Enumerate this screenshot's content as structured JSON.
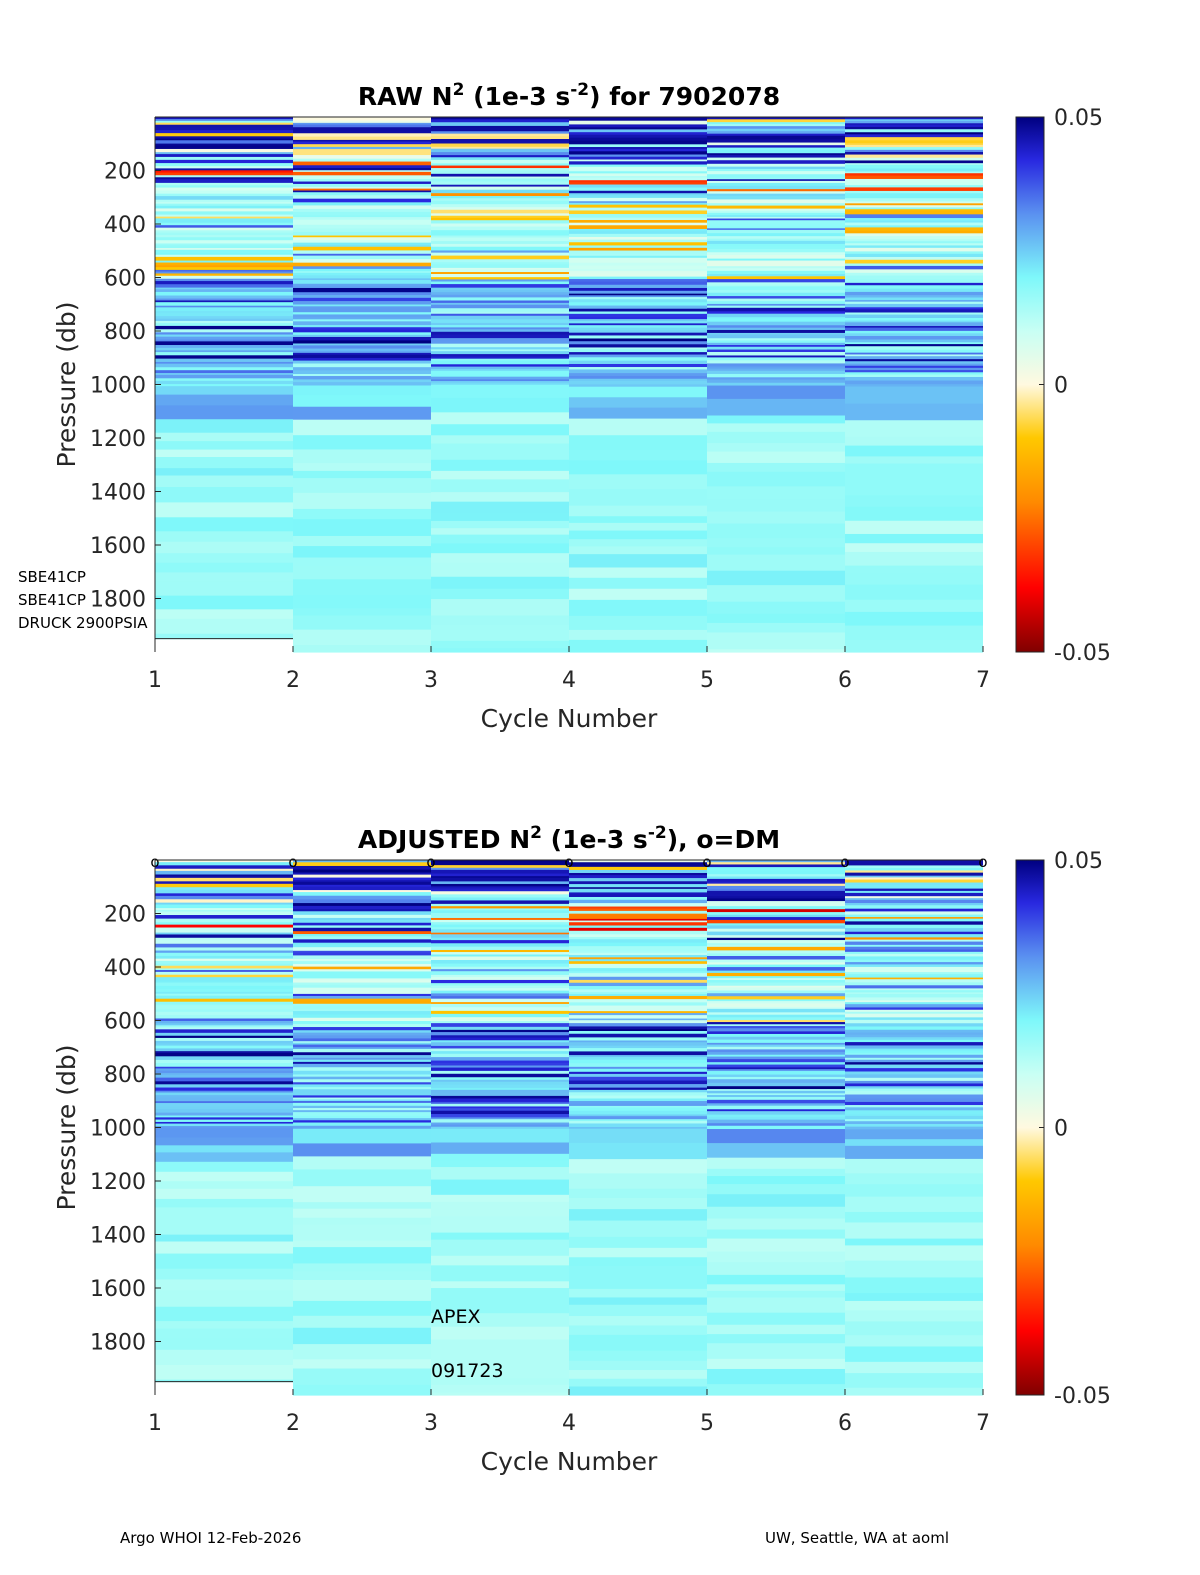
{
  "chart_data": [
    {
      "type": "heatmap",
      "title": {
        "prefix": "RAW N",
        "sup": "2",
        "mid": " (1e-3 s",
        "sup2": "-2",
        "suffix": ") for 7902078"
      },
      "xlabel": "Cycle Number",
      "ylabel": "Pressure (db)",
      "x_ticks": [
        "1",
        "2",
        "3",
        "4",
        "5",
        "6",
        "7"
      ],
      "y_ticks": [
        "200",
        "400",
        "600",
        "800",
        "1000",
        "1200",
        "1400",
        "1600",
        "1800"
      ],
      "xlim": [
        1,
        7
      ],
      "ylim": [
        0,
        2000
      ],
      "colorbar": {
        "ticks": [
          "0.05",
          "0",
          "-0.05"
        ],
        "clim": [
          -0.05,
          0.05
        ]
      },
      "sensor_notes": [
        "SBE41CP",
        "SBE41CP",
        "DRUCK 2900PSIA"
      ],
      "annotations": [],
      "dm_markers": [],
      "max_pressure": [
        1950,
        2000,
        2000,
        2000,
        2000,
        2000
      ],
      "seed": 11
    },
    {
      "type": "heatmap",
      "title": {
        "prefix": "ADJUSTED N",
        "sup": "2",
        "mid": " (1e-3 s",
        "sup2": "-2",
        "suffix": "), o=DM"
      },
      "xlabel": "Cycle Number",
      "ylabel": "Pressure (db)",
      "x_ticks": [
        "1",
        "2",
        "3",
        "4",
        "5",
        "6",
        "7"
      ],
      "y_ticks": [
        "200",
        "400",
        "600",
        "800",
        "1000",
        "1200",
        "1400",
        "1600",
        "1800"
      ],
      "xlim": [
        1,
        7
      ],
      "ylim": [
        0,
        2000
      ],
      "colorbar": {
        "ticks": [
          "0.05",
          "0",
          "-0.05"
        ],
        "clim": [
          -0.05,
          0.05
        ]
      },
      "sensor_notes": [],
      "annotations": [
        "APEX",
        "091723"
      ],
      "dm_markers": [
        "o",
        "o",
        "o",
        "o",
        "o",
        "o",
        "o"
      ],
      "max_pressure": [
        1950,
        2000,
        2000,
        2000,
        2000,
        2000
      ],
      "seed": 29
    }
  ],
  "footer": {
    "left": "Argo WHOI 12-Feb-2026",
    "right": "UW, Seattle, WA at aoml"
  }
}
